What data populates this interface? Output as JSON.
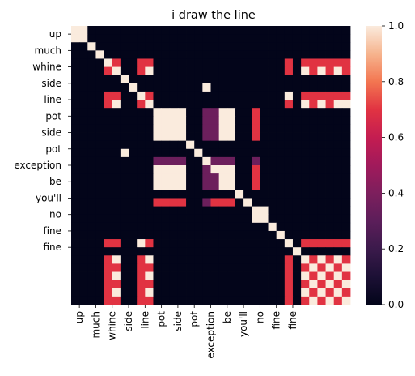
{
  "chart_data": {
    "type": "heatmap",
    "title": "i draw the line",
    "tokens": [
      "up",
      "up",
      "much",
      "much",
      "whine",
      "whine",
      "side",
      "side",
      "line",
      "line",
      "pot",
      "pot",
      "pot",
      "pot",
      "side",
      "side",
      "pot",
      "pot",
      "pot",
      "pot",
      "exception",
      "exception",
      "be",
      "be",
      "you'll",
      "you'll",
      "no",
      "no",
      "fine",
      "fine",
      "fine",
      "fine",
      "fine",
      "fine"
    ],
    "ytick_labels": [
      "up",
      "much",
      "whine",
      "side",
      "line",
      "pot",
      "side",
      "pot",
      "exception",
      "be",
      "you'll",
      "no",
      "fine",
      "fine"
    ],
    "xtick_labels": [
      "up",
      "much",
      "whine",
      "side",
      "line",
      "pot",
      "side",
      "pot",
      "exception",
      "be",
      "you'll",
      "no",
      "fine",
      "fine"
    ],
    "colorbar": {
      "min": 0.0,
      "max": 1.0,
      "ticks": [
        "0.0",
        "0.2",
        "0.4",
        "0.6",
        "0.8",
        "1.0"
      ],
      "colormap": "rocket"
    },
    "colors": {
      "dark": "#03051a",
      "mid": "#701f57",
      "orange": "#f06043",
      "light": "#faebdd"
    },
    "values": [
      [
        1,
        1,
        0,
        0,
        0,
        0,
        0,
        0,
        0,
        0,
        0,
        0,
        0,
        0,
        0,
        0,
        0,
        0,
        0,
        0,
        0,
        0,
        0,
        0,
        0,
        0,
        0,
        0,
        0,
        0,
        0,
        0,
        0,
        0
      ],
      [
        1,
        1,
        0,
        0,
        0,
        0,
        0,
        0,
        0,
        0,
        0,
        0,
        0,
        0,
        0,
        0,
        0,
        0,
        0,
        0,
        0,
        0,
        0,
        0,
        0,
        0,
        0,
        0,
        0,
        0,
        0,
        0,
        0,
        0
      ],
      [
        0,
        0,
        1,
        0,
        0,
        0,
        0,
        0,
        0,
        0,
        0,
        0,
        0,
        0,
        0,
        0,
        0,
        0,
        0,
        0,
        0,
        0,
        0,
        0,
        0,
        0,
        0,
        0,
        0,
        0,
        0,
        0,
        0,
        0
      ],
      [
        0,
        0,
        0,
        1,
        0,
        0,
        0,
        0,
        0,
        0,
        0,
        0,
        0,
        0,
        0,
        0,
        0,
        0,
        0,
        0,
        0,
        0,
        0,
        0,
        0,
        0,
        0,
        0,
        0,
        0,
        0,
        0,
        0,
        0
      ],
      [
        0,
        0,
        0,
        0,
        1,
        0.7,
        0,
        0,
        0.7,
        0.7,
        0,
        0,
        0,
        0,
        0,
        0,
        0,
        0,
        0,
        0,
        0,
        0,
        0,
        0,
        0,
        0,
        0.7,
        0,
        0.7,
        0.7,
        0.7,
        0.7,
        0.7,
        0.7
      ],
      [
        0,
        0,
        0,
        0,
        0.7,
        1,
        0,
        0,
        0.7,
        1,
        0,
        0,
        0,
        0,
        0,
        0,
        0,
        0,
        0,
        0,
        0,
        0,
        0,
        0,
        0,
        0,
        0.7,
        0,
        1,
        0.7,
        1,
        0.7,
        1,
        0.7
      ],
      [
        0,
        0,
        0,
        0,
        0,
        0,
        1,
        0,
        0,
        0,
        0,
        0,
        0,
        0,
        0,
        0,
        0,
        0,
        0,
        0,
        0,
        0,
        0,
        0,
        0,
        0,
        0,
        0,
        0,
        0,
        0,
        0,
        0,
        0
      ],
      [
        0,
        0,
        0,
        0,
        0,
        0,
        0,
        1,
        0,
        0,
        0,
        0,
        0,
        0,
        0,
        0,
        1,
        0,
        0,
        0,
        0,
        0,
        0,
        0,
        0,
        0,
        0,
        0,
        0,
        0,
        0,
        0,
        0,
        0
      ],
      [
        0,
        0,
        0,
        0,
        0.7,
        0.7,
        0,
        0,
        1,
        0.7,
        0,
        0,
        0,
        0,
        0,
        0,
        0,
        0,
        0,
        0,
        0,
        0,
        0,
        0,
        0,
        0,
        1,
        0,
        0.7,
        0.7,
        0.7,
        0.7,
        0.7,
        0.7
      ],
      [
        0,
        0,
        0,
        0,
        0.7,
        1,
        0,
        0,
        0.7,
        1,
        0,
        0,
        0,
        0,
        0,
        0,
        0,
        0,
        0,
        0,
        0,
        0,
        0,
        0,
        0,
        0,
        0.7,
        0,
        1,
        0.7,
        1,
        0.7,
        1,
        1
      ],
      [
        0,
        0,
        0,
        0,
        0,
        0,
        0,
        0,
        0,
        0,
        1,
        1,
        1,
        1,
        0,
        0,
        0.35,
        0.35,
        1,
        1,
        0,
        0,
        0.7,
        0,
        0,
        0,
        0,
        0,
        0,
        0,
        0,
        0,
        0,
        0
      ],
      [
        0,
        0,
        0,
        0,
        0,
        0,
        0,
        0,
        0,
        0,
        1,
        1,
        1,
        1,
        0,
        0,
        0.35,
        0.35,
        1,
        1,
        0,
        0,
        0.7,
        0,
        0,
        0,
        0,
        0,
        0,
        0,
        0,
        0,
        0,
        0
      ],
      [
        0,
        0,
        0,
        0,
        0,
        0,
        0,
        0,
        0,
        0,
        1,
        1,
        1,
        1,
        0,
        0,
        0.35,
        0.35,
        1,
        1,
        0,
        0,
        0.7,
        0,
        0,
        0,
        0,
        0,
        0,
        0,
        0,
        0,
        0,
        0
      ],
      [
        0,
        0,
        0,
        0,
        0,
        0,
        0,
        0,
        0,
        0,
        1,
        1,
        1,
        1,
        0,
        0,
        0.35,
        0.35,
        1,
        1,
        0,
        0,
        0.7,
        0,
        0,
        0,
        0,
        0,
        0,
        0,
        0,
        0,
        0,
        0
      ],
      [
        0,
        0,
        0,
        0,
        0,
        0,
        0,
        0,
        0,
        0,
        0,
        0,
        0,
        0,
        1,
        0,
        0,
        0,
        0,
        0,
        0,
        0,
        0,
        0,
        0,
        0,
        0,
        0,
        0,
        0,
        0,
        0,
        0,
        0
      ],
      [
        0,
        0,
        0,
        0,
        0,
        0,
        1,
        0,
        0,
        0,
        0,
        0,
        0,
        0,
        0,
        1,
        0,
        0,
        0,
        0,
        0,
        0,
        0,
        0,
        0,
        0,
        0,
        0,
        0,
        0,
        0,
        0,
        0,
        0
      ],
      [
        0,
        0,
        0,
        0,
        0,
        0,
        0,
        0,
        0,
        0,
        0.35,
        0.35,
        0.35,
        0.35,
        0,
        0,
        1,
        0.35,
        0.35,
        0.35,
        0,
        0,
        0.35,
        0,
        0,
        0,
        0,
        0,
        0,
        0,
        0,
        0,
        0,
        0
      ],
      [
        0,
        0,
        0,
        0,
        0,
        0,
        0,
        0,
        0,
        0,
        1,
        1,
        1,
        1,
        0,
        0,
        0.35,
        1,
        1,
        1,
        0,
        0,
        0.7,
        0,
        0,
        0,
        0,
        0,
        0,
        0,
        0,
        0,
        0,
        0
      ],
      [
        0,
        0,
        0,
        0,
        0,
        0,
        0,
        0,
        0,
        0,
        1,
        1,
        1,
        1,
        0,
        0,
        0.35,
        0.35,
        1,
        1,
        0,
        0,
        0.7,
        0,
        0,
        0,
        0,
        0,
        0,
        0,
        0,
        0,
        0,
        0
      ],
      [
        0,
        0,
        0,
        0,
        0,
        0,
        0,
        0,
        0,
        0,
        1,
        1,
        1,
        1,
        0,
        0,
        0.35,
        0.35,
        1,
        1,
        0,
        0,
        0.7,
        0,
        0,
        0,
        0,
        0,
        0,
        0,
        0,
        0,
        0,
        0
      ],
      [
        0,
        0,
        0,
        0,
        0,
        0,
        0,
        0,
        0,
        0,
        0,
        0,
        0,
        0,
        0,
        0,
        0,
        0,
        0,
        0,
        1,
        0,
        0,
        0,
        0,
        0,
        0,
        0,
        0,
        0,
        0,
        0,
        0,
        0
      ],
      [
        0,
        0,
        0,
        0,
        0,
        0,
        0,
        0,
        0,
        0,
        0.7,
        0.7,
        0.7,
        0.7,
        0,
        0,
        0.35,
        0.7,
        0.7,
        0.7,
        0,
        1,
        0,
        0,
        0,
        0,
        0,
        0,
        0,
        0,
        0,
        0,
        0,
        0
      ],
      [
        0,
        0,
        0,
        0,
        0,
        0,
        0,
        0,
        0,
        0,
        0,
        0,
        0,
        0,
        0,
        0,
        0,
        0,
        0,
        0,
        0,
        0,
        1,
        1,
        0,
        0,
        0,
        0,
        0,
        0,
        0,
        0,
        0,
        0
      ],
      [
        0,
        0,
        0,
        0,
        0,
        0,
        0,
        0,
        0,
        0,
        0,
        0,
        0,
        0,
        0,
        0,
        0,
        0,
        0,
        0,
        0,
        0,
        1,
        1,
        0,
        0,
        0,
        0,
        0,
        0,
        0,
        0,
        0,
        0
      ],
      [
        0,
        0,
        0,
        0,
        0,
        0,
        0,
        0,
        0,
        0,
        0,
        0,
        0,
        0,
        0,
        0,
        0,
        0,
        0,
        0,
        0,
        0,
        0,
        0,
        1,
        0,
        0,
        0,
        0,
        0,
        0,
        0,
        0,
        0
      ],
      [
        0,
        0,
        0,
        0,
        0,
        0,
        0,
        0,
        0,
        0,
        0,
        0,
        0,
        0,
        0,
        0,
        0,
        0,
        0,
        0,
        0,
        0,
        0,
        0,
        0,
        1,
        0,
        0,
        0,
        0,
        0,
        0,
        0,
        0
      ],
      [
        0,
        0,
        0,
        0,
        0.7,
        0.7,
        0,
        0,
        1,
        0.7,
        0,
        0,
        0,
        0,
        0,
        0,
        0,
        0,
        0,
        0,
        0,
        0,
        0,
        0,
        0,
        0,
        1,
        0,
        0.7,
        0.7,
        0.7,
        0.7,
        0.7,
        0.7
      ],
      [
        0,
        0,
        0,
        0,
        0,
        0,
        0,
        0,
        0,
        0,
        0,
        0,
        0,
        0,
        0,
        0,
        0,
        0,
        0,
        0,
        0,
        0,
        0,
        0,
        0,
        0,
        0,
        1,
        0,
        0,
        0,
        0,
        0,
        0
      ],
      [
        0,
        0,
        0,
        0,
        0.7,
        1,
        0,
        0,
        0.7,
        1,
        0,
        0,
        0,
        0,
        0,
        0,
        0,
        0,
        0,
        0,
        0,
        0,
        0,
        0,
        0,
        0,
        0.7,
        0,
        1,
        0.7,
        1,
        0.7,
        1,
        0.7
      ],
      [
        0,
        0,
        0,
        0,
        0.7,
        0.7,
        0,
        0,
        0.7,
        0.7,
        0,
        0,
        0,
        0,
        0,
        0,
        0,
        0,
        0,
        0,
        0,
        0,
        0,
        0,
        0,
        0,
        0.7,
        0,
        0.7,
        1,
        0.7,
        1,
        0.7,
        1
      ],
      [
        0,
        0,
        0,
        0,
        0.7,
        1,
        0,
        0,
        0.7,
        1,
        0,
        0,
        0,
        0,
        0,
        0,
        0,
        0,
        0,
        0,
        0,
        0,
        0,
        0,
        0,
        0,
        0.7,
        0,
        1,
        0.7,
        1,
        0.7,
        1,
        0.7
      ],
      [
        0,
        0,
        0,
        0,
        0.7,
        0.7,
        0,
        0,
        0.7,
        0.7,
        0,
        0,
        0,
        0,
        0,
        0,
        0,
        0,
        0,
        0,
        0,
        0,
        0,
        0,
        0,
        0,
        0.7,
        0,
        0.7,
        1,
        0.7,
        1,
        0.7,
        1
      ],
      [
        0,
        0,
        0,
        0,
        0.7,
        1,
        0,
        0,
        0.7,
        1,
        0,
        0,
        0,
        0,
        0,
        0,
        0,
        0,
        0,
        0,
        0,
        0,
        0,
        0,
        0,
        0,
        0.7,
        0,
        1,
        0.7,
        1,
        0.7,
        1,
        0.7
      ],
      [
        0,
        0,
        0,
        0,
        0.7,
        0.7,
        0,
        0,
        0.7,
        0.7,
        0,
        0,
        0,
        0,
        0,
        0,
        0,
        0,
        0,
        0,
        0,
        0,
        0,
        0,
        0,
        0,
        0.7,
        0,
        0.7,
        1,
        0.7,
        1,
        0.7,
        1
      ]
    ]
  }
}
